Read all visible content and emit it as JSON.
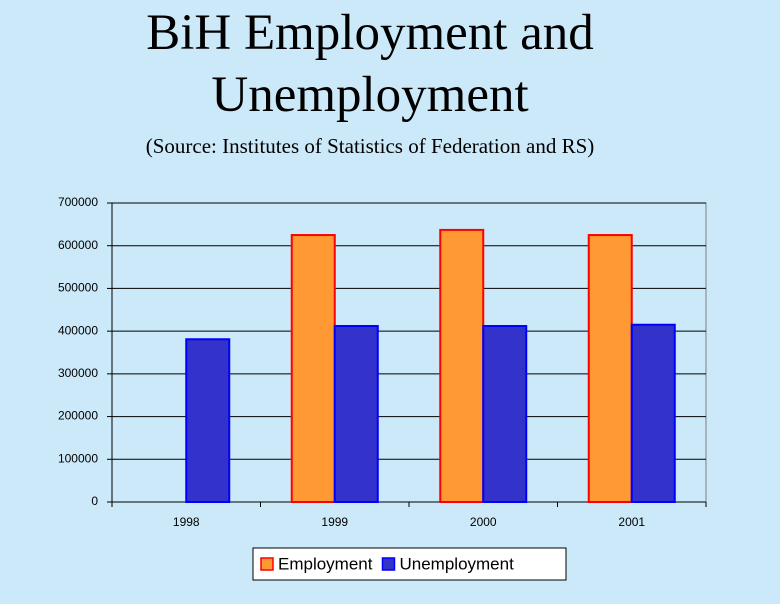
{
  "chart_data": {
    "type": "bar",
    "title": "BiH Employment and Unemployment",
    "subtitle": "(Source: Institutes of Statistics of Federation and RS)",
    "categories": [
      "1998",
      "1999",
      "2000",
      "2001"
    ],
    "series": [
      {
        "name": "Employment",
        "color": "#ff9933",
        "values": [
          null,
          625000,
          637000,
          625000
        ]
      },
      {
        "name": "Unemployment",
        "color": "#3333cc",
        "values": [
          381000,
          412000,
          412000,
          415000
        ]
      }
    ],
    "ylim": [
      0,
      700000
    ],
    "yticks": [
      0,
      100000,
      200000,
      300000,
      400000,
      500000,
      600000,
      700000
    ],
    "grid": true,
    "legend": "bottom"
  }
}
